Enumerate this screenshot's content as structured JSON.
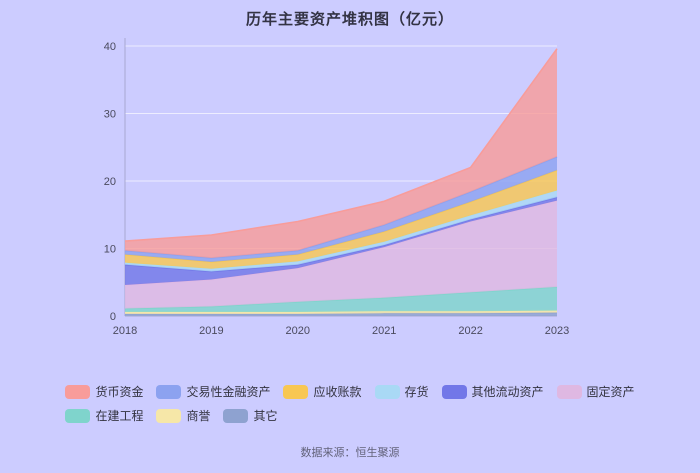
{
  "title": "历年主要资产堆积图（亿元）",
  "footer": {
    "source_label": "数据来源：恒生聚源"
  },
  "colors": {
    "background": "#ccccff",
    "grid": "rgba(255,255,255,0.65)",
    "axis": "#a9a9d0"
  },
  "chart_data": {
    "type": "area",
    "stacked": true,
    "title": "历年主要资产堆积图（亿元）",
    "x": [
      "2018",
      "2019",
      "2020",
      "2021",
      "2022",
      "2023"
    ],
    "ylim": [
      0,
      40
    ],
    "yticks": [
      0,
      10,
      20,
      30,
      40
    ],
    "grid": true,
    "legend_position": "bottom",
    "series": [
      {
        "id": "others",
        "name": "其它",
        "color": "#8ea2d0",
        "values": [
          0.3,
          0.3,
          0.3,
          0.4,
          0.4,
          0.5
        ]
      },
      {
        "id": "goodwill",
        "name": "商誉",
        "color": "#f6e7a8",
        "values": [
          0.3,
          0.3,
          0.3,
          0.3,
          0.3,
          0.3
        ]
      },
      {
        "id": "construction-in-progress",
        "name": "在建工程",
        "color": "#7fd4cc",
        "values": [
          0.5,
          0.8,
          1.5,
          2.0,
          2.8,
          3.5
        ]
      },
      {
        "id": "fixed-assets",
        "name": "固定资产",
        "color": "#dfb8e2",
        "values": [
          3.5,
          4.0,
          5.0,
          7.5,
          10.5,
          12.8
        ]
      },
      {
        "id": "other-current-assets",
        "name": "其他流动资产",
        "color": "#7277e8",
        "values": [
          3.0,
          1.2,
          0.5,
          0.3,
          0.3,
          0.5
        ]
      },
      {
        "id": "inventory",
        "name": "存货",
        "color": "#a9d9f5",
        "values": [
          0.3,
          0.4,
          0.5,
          0.5,
          0.6,
          1.0
        ]
      },
      {
        "id": "accounts-receivable",
        "name": "应收账款",
        "color": "#f8c753",
        "values": [
          1.2,
          1.0,
          1.0,
          1.5,
          2.0,
          3.0
        ]
      },
      {
        "id": "trading-financial-assets",
        "name": "交易性金融资产",
        "color": "#8ca2f0",
        "values": [
          0.6,
          0.6,
          0.6,
          1.0,
          1.5,
          2.0
        ]
      },
      {
        "id": "monetary-funds",
        "name": "货币资金",
        "color": "#f89c9a",
        "values": [
          1.4,
          3.4,
          4.3,
          3.5,
          3.6,
          16.0
        ]
      }
    ],
    "legend_rows": [
      [
        "货币资金",
        "交易性金融资产",
        "应收账款",
        "存货",
        "其他流动资产",
        "固定资产"
      ],
      [
        "在建工程",
        "商誉",
        "其它"
      ]
    ]
  }
}
